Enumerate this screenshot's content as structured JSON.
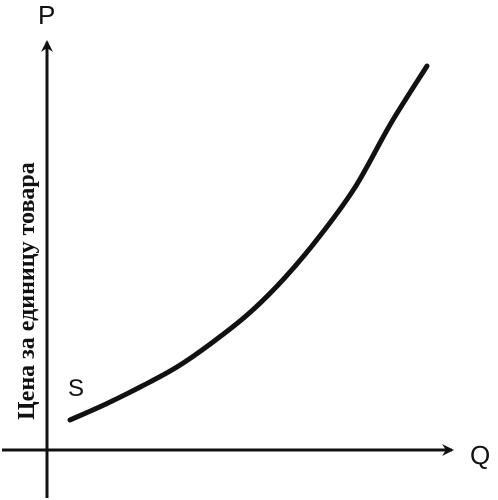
{
  "chart_data": {
    "type": "line",
    "title": "",
    "xlabel": "Q",
    "ylabel": "Цена за единицу товара",
    "y_axis_symbol": "P",
    "grid": false,
    "series": [
      {
        "name": "S",
        "x": [
          0.0,
          0.1,
          0.2,
          0.3,
          0.4,
          0.5,
          0.6,
          0.7,
          0.8,
          0.9,
          1.0
        ],
        "y": [
          0.0,
          0.045,
          0.095,
          0.15,
          0.22,
          0.3,
          0.4,
          0.52,
          0.66,
          0.84,
          1.0
        ]
      }
    ],
    "xlim": [
      0,
      1
    ],
    "ylim": [
      0,
      1
    ],
    "colors": {
      "ink": "#111111",
      "background": "#ffffff"
    }
  }
}
